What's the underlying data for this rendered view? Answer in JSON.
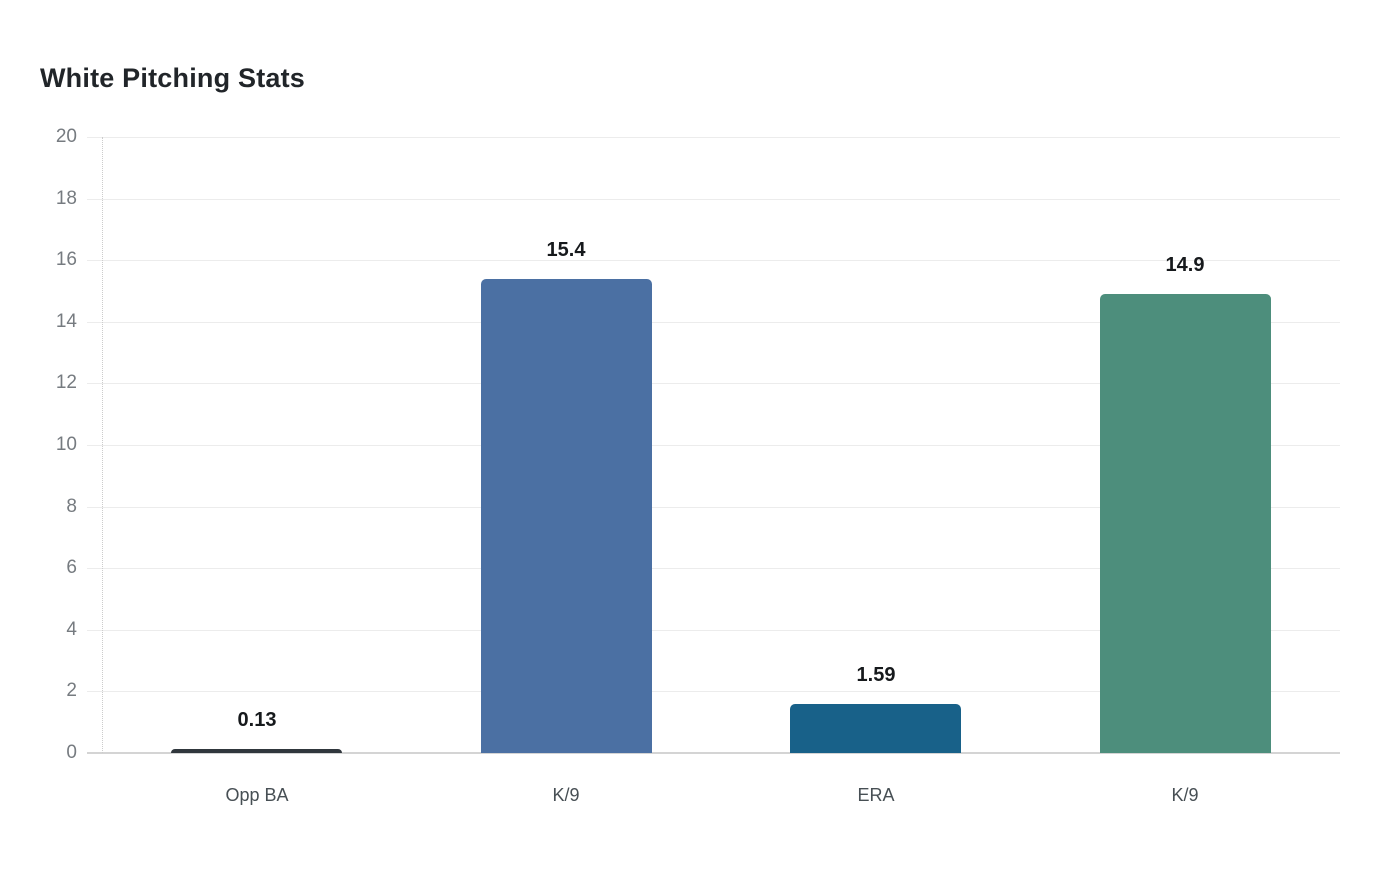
{
  "chart_data": {
    "type": "bar",
    "title": "White Pitching Stats",
    "categories": [
      "Opp BA",
      "K/9",
      "ERA",
      "K/9"
    ],
    "values": [
      0.13,
      15.4,
      1.59,
      14.9
    ],
    "value_labels": [
      "0.13",
      "15.4",
      "1.59",
      "14.9"
    ],
    "bar_colors": [
      "#30373d",
      "#4b70a3",
      "#186189",
      "#4d8e7c"
    ],
    "xlabel": "",
    "ylabel": "",
    "ylim": [
      0,
      20
    ],
    "y_ticks": [
      0,
      2,
      4,
      6,
      8,
      10,
      12,
      14,
      16,
      18,
      20
    ],
    "grid": "horizontal",
    "legend_position": "none"
  },
  "styles": {
    "background_color": "#ffffff",
    "title_color": "#212529",
    "gridline_color": "#ececec",
    "baseline_color": "#d4d4d4",
    "axis_dotted_color": "#cccccc",
    "tick_label_color": "#767b80",
    "category_label_color": "#474f54",
    "value_label_color": "#16191c"
  }
}
